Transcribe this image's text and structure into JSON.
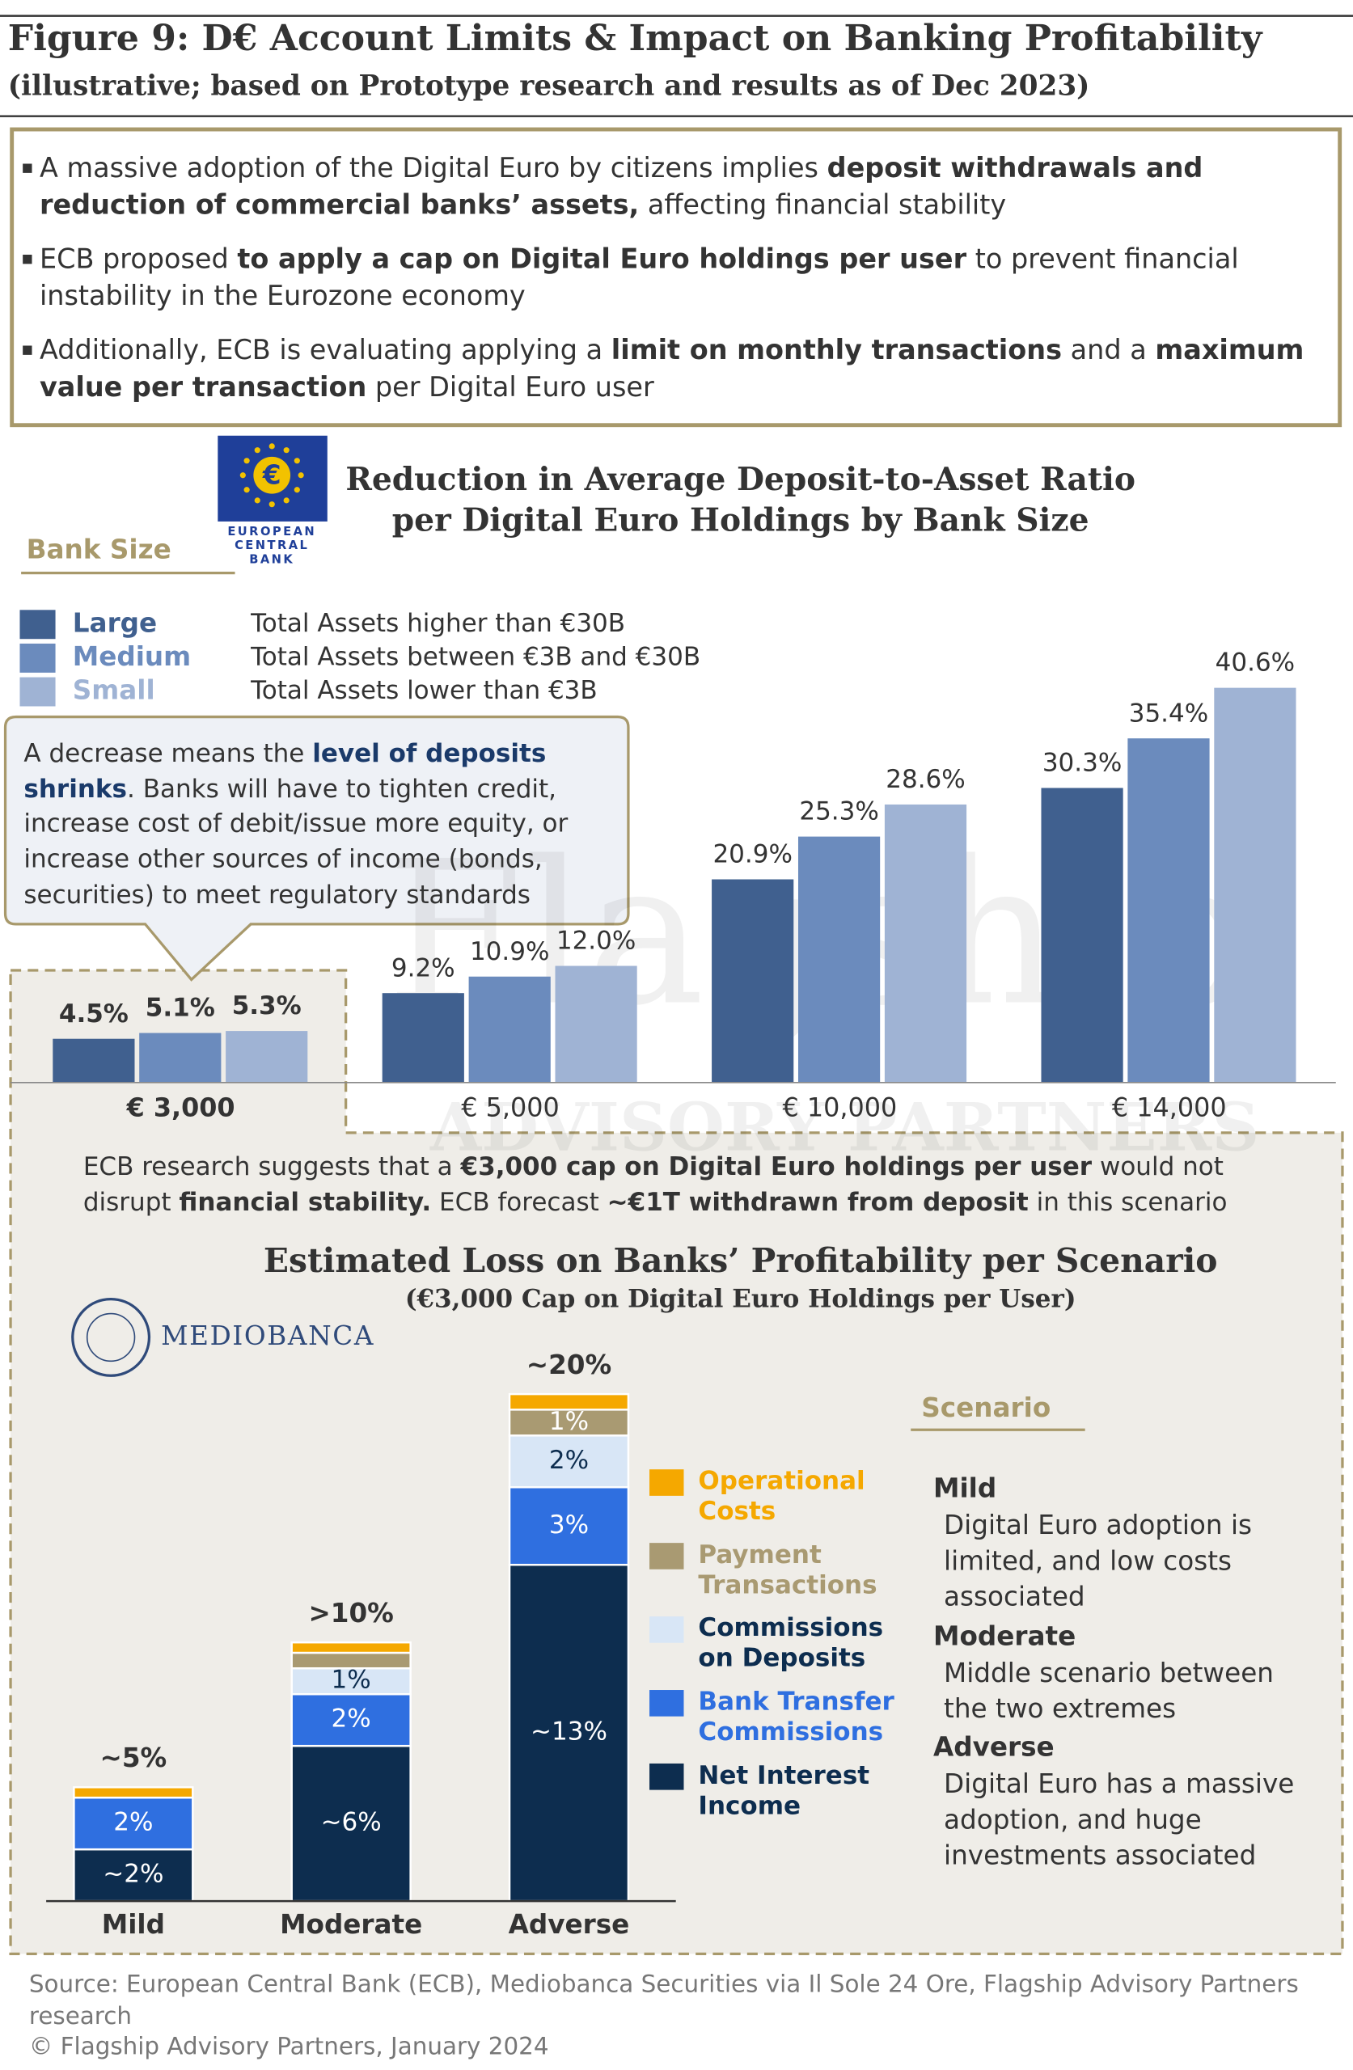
{
  "header": {
    "title": "Figure 9: D€ Account Limits & Impact on Banking Profitability",
    "subtitle": "(illustrative; based on Prototype research and results as of Dec 2023)"
  },
  "bullets": [
    [
      "A massive adoption of the Digital Euro by citizens implies ",
      "deposit withdrawals and reduction of commercial banks’ assets,",
      " affecting financial stability"
    ],
    [
      "ECB proposed ",
      "to apply a cap on Digital Euro holdings per user",
      " to prevent financial instability in the Eurozone economy"
    ],
    [
      "Additionally, ECB is evaluating applying a ",
      "limit on monthly transactions",
      " and a ",
      "maximum value per transaction",
      " per Digital Euro user"
    ]
  ],
  "ecb_logo": [
    "EUROPEAN",
    "CENTRAL",
    "BANK"
  ],
  "watermark": [
    "Flagship",
    "ADVISORY PARTNERS"
  ],
  "callout": [
    "A decrease means the ",
    "level of deposits shrinks",
    ". Banks will have to tighten credit, increase cost of debit/issue more equity, or increase other sources of income (bonds, securities) to meet regulatory standards"
  ],
  "note": [
    "ECB research suggests that a ",
    "€3,000 cap on Digital Euro holdings per user",
    " would not disrupt ",
    "financial stability.",
    " ECB forecast ",
    "~€1T withdrawn from deposit",
    " in this scenario"
  ],
  "mediobanca_logo": "MEDIOBANCA",
  "chart_data": [
    {
      "type": "bar",
      "title": [
        "Reduction in Average Deposit-to-Asset Ratio",
        "per Digital Euro Holdings by Bank Size"
      ],
      "legend_title": "Bank Size",
      "categories": [
        "€ 3,000",
        "€ 5,000",
        "€ 10,000",
        "€ 14,000"
      ],
      "series": [
        {
          "name": "Large",
          "description": "Total Assets higher than €30B",
          "color": "#40608f",
          "values": [
            4.5,
            9.2,
            20.9,
            30.3
          ],
          "value_labels": [
            "4.5%",
            "9.2%",
            "20.9%",
            "30.3%"
          ]
        },
        {
          "name": "Medium",
          "description": "Total Assets between €3B and €30B",
          "color": "#6b8bbd",
          "values": [
            5.1,
            10.9,
            25.3,
            35.4
          ],
          "value_labels": [
            "5.1%",
            "10.9%",
            "25.3%",
            "35.4%"
          ]
        },
        {
          "name": "Small",
          "description": "Total Assets lower than €3B",
          "color": "#9fb3d4",
          "values": [
            5.3,
            12.0,
            28.6,
            40.6
          ],
          "value_labels": [
            "5.3%",
            "12.0%",
            "28.6%",
            "40.6%"
          ]
        }
      ]
    },
    {
      "type": "stacked_bar",
      "title": "Estimated Loss on Banks’ Profitability per Scenario",
      "subtitle": "(€3,000 Cap on Digital Euro Holdings per User)",
      "legend_title": "Scenario",
      "categories": [
        "Mild",
        "Moderate",
        "Adverse"
      ],
      "total_labels": [
        "~5%",
        ">10%",
        "~20%"
      ],
      "category_descriptions": [
        "Digital Euro adoption is limited, and low costs associated",
        "Middle scenario between the two extremes",
        "Digital Euro has a massive adoption, and huge investments associated"
      ],
      "series": [
        {
          "name": "Net Interest Income",
          "color": "#0d2d4f",
          "values": [
            2,
            6,
            13
          ],
          "value_labels": [
            "~2%",
            "~6%",
            "~13%"
          ]
        },
        {
          "name": "Bank Transfer Commissions",
          "color": "#2f6fe0",
          "values": [
            2,
            2,
            3
          ],
          "value_labels": [
            "2%",
            "2%",
            "3%"
          ]
        },
        {
          "name": "Commissions on Deposits",
          "color": "#d8e6f6",
          "values": [
            null,
            1,
            2
          ],
          "value_labels": [
            null,
            "1%",
            "2%"
          ]
        },
        {
          "name": "Payment Transactions",
          "color": "#a99a72",
          "values": [
            null,
            0.6,
            1
          ],
          "value_labels": [
            null,
            null,
            "1%"
          ]
        },
        {
          "name": "Operational Costs",
          "color": "#f5a800",
          "values": [
            0.4,
            0.4,
            0.6
          ],
          "value_labels": [
            null,
            null,
            null
          ]
        }
      ]
    }
  ],
  "footer": {
    "source": "Source: European Central Bank (ECB), Mediobanca Securities via Il Sole 24 Ore, Flagship Advisory Partners research",
    "copyright": "© Flagship Advisory Partners, January 2024"
  }
}
